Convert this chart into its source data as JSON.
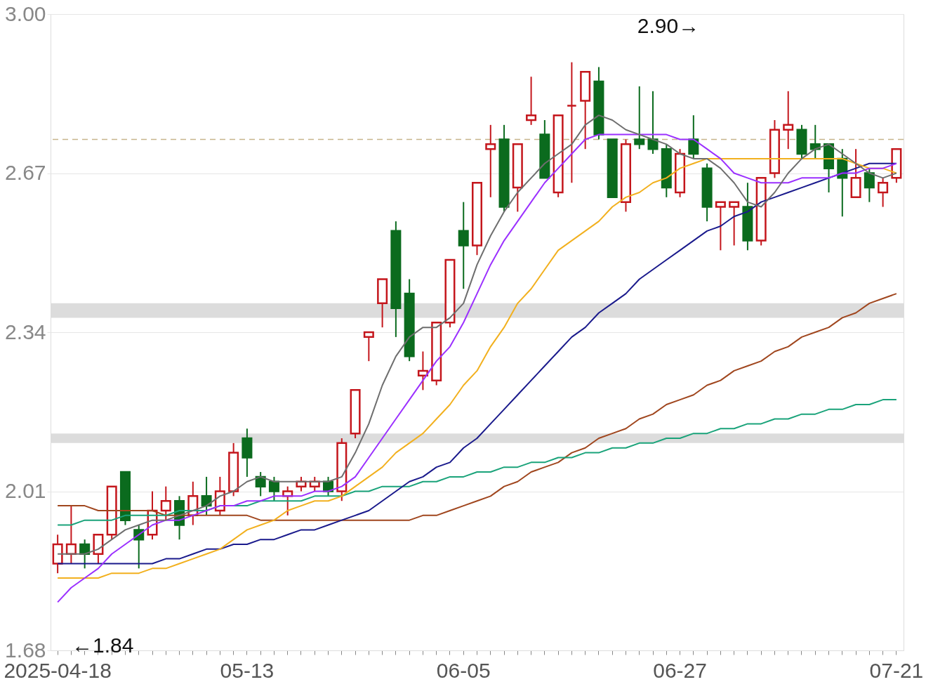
{
  "chart_data": {
    "type": "candlestick",
    "categories": [
      "2025-04-18",
      null,
      null,
      null,
      null,
      null,
      null,
      null,
      null,
      null,
      null,
      null,
      null,
      null,
      "05-13",
      null,
      null,
      null,
      null,
      null,
      null,
      null,
      null,
      null,
      null,
      null,
      null,
      null,
      null,
      null,
      "06-05",
      null,
      null,
      null,
      null,
      null,
      null,
      null,
      null,
      null,
      null,
      null,
      null,
      null,
      null,
      null,
      "06-27",
      null,
      null,
      null,
      null,
      null,
      null,
      null,
      null,
      null,
      null,
      null,
      null,
      null,
      null,
      null,
      "07-21"
    ],
    "ohlc": [
      [
        1.86,
        1.92,
        1.84,
        1.9
      ],
      [
        1.88,
        1.98,
        1.86,
        1.9
      ],
      [
        1.9,
        1.91,
        1.85,
        1.88
      ],
      [
        1.88,
        1.92,
        1.86,
        1.92
      ],
      [
        1.92,
        2.02,
        1.91,
        2.02
      ],
      [
        2.05,
        2.05,
        1.94,
        1.95
      ],
      [
        1.93,
        1.94,
        1.85,
        1.91
      ],
      [
        1.92,
        2.01,
        1.91,
        1.97
      ],
      [
        1.97,
        2.02,
        1.95,
        1.99
      ],
      [
        1.99,
        2.0,
        1.91,
        1.94
      ],
      [
        1.96,
        2.03,
        1.94,
        2.0
      ],
      [
        2.0,
        2.04,
        1.96,
        1.98
      ],
      [
        1.97,
        2.04,
        1.96,
        2.01
      ],
      [
        2.01,
        2.11,
        2.0,
        2.09
      ],
      [
        2.12,
        2.14,
        2.04,
        2.08
      ],
      [
        2.04,
        2.05,
        2.0,
        2.02
      ],
      [
        2.03,
        2.04,
        1.99,
        2.01
      ],
      [
        2.0,
        2.02,
        1.96,
        2.01
      ],
      [
        2.02,
        2.04,
        2.01,
        2.03
      ],
      [
        2.02,
        2.04,
        2.01,
        2.03
      ],
      [
        2.03,
        2.04,
        2.0,
        2.01
      ],
      [
        2.01,
        2.12,
        1.99,
        2.11
      ],
      [
        2.13,
        2.22,
        2.12,
        2.22
      ],
      [
        2.33,
        2.34,
        2.28,
        2.34
      ],
      [
        2.4,
        2.45,
        2.35,
        2.45
      ],
      [
        2.55,
        2.57,
        2.33,
        2.39
      ],
      [
        2.42,
        2.45,
        2.28,
        2.29
      ],
      [
        2.25,
        2.3,
        2.22,
        2.26
      ],
      [
        2.24,
        2.36,
        2.23,
        2.36
      ],
      [
        2.36,
        2.49,
        2.35,
        2.49
      ],
      [
        2.55,
        2.61,
        2.43,
        2.52
      ],
      [
        2.52,
        2.65,
        2.5,
        2.65
      ],
      [
        2.72,
        2.77,
        2.62,
        2.73
      ],
      [
        2.74,
        2.77,
        2.59,
        2.6
      ],
      [
        2.64,
        2.73,
        2.59,
        2.73
      ],
      [
        2.78,
        2.87,
        2.77,
        2.79
      ],
      [
        2.75,
        2.78,
        2.66,
        2.66
      ],
      [
        2.63,
        2.79,
        2.62,
        2.79
      ],
      [
        2.81,
        2.9,
        2.65,
        2.81
      ],
      [
        2.82,
        2.88,
        2.72,
        2.88
      ],
      [
        2.86,
        2.89,
        2.74,
        2.75
      ],
      [
        2.74,
        2.74,
        2.62,
        2.62
      ],
      [
        2.61,
        2.74,
        2.59,
        2.73
      ],
      [
        2.74,
        2.85,
        2.72,
        2.73
      ],
      [
        2.74,
        2.84,
        2.71,
        2.72
      ],
      [
        2.72,
        2.73,
        2.62,
        2.64
      ],
      [
        2.63,
        2.72,
        2.62,
        2.71
      ],
      [
        2.74,
        2.79,
        2.7,
        2.71
      ],
      [
        2.68,
        2.69,
        2.57,
        2.6
      ],
      [
        2.6,
        2.61,
        2.51,
        2.61
      ],
      [
        2.6,
        2.61,
        2.52,
        2.61
      ],
      [
        2.6,
        2.65,
        2.51,
        2.53
      ],
      [
        2.53,
        2.66,
        2.52,
        2.66
      ],
      [
        2.67,
        2.78,
        2.66,
        2.76
      ],
      [
        2.76,
        2.84,
        2.72,
        2.77
      ],
      [
        2.76,
        2.77,
        2.7,
        2.71
      ],
      [
        2.73,
        2.77,
        2.7,
        2.72
      ],
      [
        2.73,
        2.73,
        2.63,
        2.68
      ],
      [
        2.7,
        2.72,
        2.58,
        2.66
      ],
      [
        2.62,
        2.72,
        2.62,
        2.66
      ],
      [
        2.67,
        2.68,
        2.61,
        2.64
      ],
      [
        2.63,
        2.66,
        2.6,
        2.65
      ],
      [
        2.66,
        2.72,
        2.65,
        2.72
      ]
    ],
    "colors": [
      "#c4161c",
      "#c4161c",
      "#0b6b1e",
      "#c4161c",
      "#c4161c",
      "#0b6b1e",
      "#0b6b1e",
      "#c4161c",
      "#c4161c",
      "#0b6b1e",
      "#c4161c",
      "#0b6b1e",
      "#c4161c",
      "#c4161c",
      "#0b6b1e",
      "#0b6b1e",
      "#0b6b1e",
      "#c4161c",
      "#c4161c",
      "#c4161c",
      "#0b6b1e",
      "#c4161c",
      "#c4161c",
      "#c4161c",
      "#c4161c",
      "#0b6b1e",
      "#0b6b1e",
      "#c4161c",
      "#c4161c",
      "#c4161c",
      "#0b6b1e",
      "#c4161c",
      "#c4161c",
      "#0b6b1e",
      "#c4161c",
      "#c4161c",
      "#0b6b1e",
      "#c4161c",
      "#c4161c",
      "#c4161c",
      "#0b6b1e",
      "#0b6b1e",
      "#c4161c",
      "#0b6b1e",
      "#0b6b1e",
      "#0b6b1e",
      "#c4161c",
      "#0b6b1e",
      "#0b6b1e",
      "#c4161c",
      "#c4161c",
      "#0b6b1e",
      "#c4161c",
      "#c4161c",
      "#c4161c",
      "#0b6b1e",
      "#0b6b1e",
      "#0b6b1e",
      "#0b6b1e",
      "#c4161c",
      "#0b6b1e",
      "#c4161c",
      "#c4161c"
    ],
    "series": [
      {
        "type": "line",
        "color": "#a0461e",
        "values": [
          1.98,
          1.98,
          1.98,
          1.97,
          1.97,
          1.97,
          1.97,
          1.97,
          1.96,
          1.96,
          1.96,
          1.96,
          1.96,
          1.96,
          1.96,
          1.95,
          1.95,
          1.95,
          1.95,
          1.95,
          1.95,
          1.95,
          1.95,
          1.95,
          1.95,
          1.95,
          1.95,
          1.96,
          1.96,
          1.97,
          1.98,
          1.99,
          2.0,
          2.02,
          2.03,
          2.05,
          2.06,
          2.07,
          2.09,
          2.1,
          2.12,
          2.13,
          2.14,
          2.16,
          2.17,
          2.19,
          2.2,
          2.21,
          2.23,
          2.24,
          2.26,
          2.27,
          2.28,
          2.3,
          2.31,
          2.33,
          2.34,
          2.35,
          2.37,
          2.38,
          2.4,
          2.41,
          2.42
        ]
      },
      {
        "type": "line",
        "color": "#1aa37a",
        "values": [
          1.94,
          1.94,
          1.95,
          1.95,
          1.95,
          1.96,
          1.96,
          1.96,
          1.96,
          1.97,
          1.97,
          1.97,
          1.98,
          1.98,
          1.98,
          1.99,
          1.99,
          1.99,
          1.99,
          2.0,
          2.0,
          2.0,
          2.01,
          2.01,
          2.02,
          2.02,
          2.02,
          2.03,
          2.03,
          2.04,
          2.04,
          2.05,
          2.05,
          2.06,
          2.06,
          2.07,
          2.07,
          2.08,
          2.08,
          2.09,
          2.09,
          2.1,
          2.1,
          2.11,
          2.11,
          2.12,
          2.12,
          2.13,
          2.13,
          2.14,
          2.14,
          2.15,
          2.15,
          2.16,
          2.16,
          2.17,
          2.17,
          2.18,
          2.18,
          2.19,
          2.19,
          2.2,
          2.2
        ]
      },
      {
        "type": "line",
        "color": "#1a1a8c",
        "values": [
          1.86,
          1.86,
          1.86,
          1.86,
          1.86,
          1.86,
          1.86,
          1.86,
          1.87,
          1.87,
          1.88,
          1.89,
          1.89,
          1.9,
          1.9,
          1.91,
          1.91,
          1.92,
          1.93,
          1.93,
          1.94,
          1.95,
          1.96,
          1.97,
          1.99,
          2.01,
          2.03,
          2.04,
          2.06,
          2.07,
          2.1,
          2.12,
          2.15,
          2.18,
          2.21,
          2.24,
          2.27,
          2.3,
          2.33,
          2.35,
          2.38,
          2.4,
          2.42,
          2.45,
          2.47,
          2.49,
          2.51,
          2.53,
          2.55,
          2.56,
          2.58,
          2.59,
          2.61,
          2.62,
          2.63,
          2.64,
          2.65,
          2.66,
          2.67,
          2.68,
          2.69,
          2.69,
          2.69
        ]
      },
      {
        "type": "line",
        "color": "#f2b01e",
        "values": [
          1.83,
          1.83,
          1.83,
          1.83,
          1.84,
          1.84,
          1.84,
          1.85,
          1.85,
          1.86,
          1.87,
          1.88,
          1.89,
          1.91,
          1.93,
          1.94,
          1.95,
          1.97,
          1.98,
          1.99,
          1.99,
          2.0,
          2.02,
          2.04,
          2.06,
          2.09,
          2.11,
          2.13,
          2.16,
          2.19,
          2.23,
          2.26,
          2.31,
          2.35,
          2.4,
          2.43,
          2.47,
          2.51,
          2.53,
          2.55,
          2.57,
          2.6,
          2.62,
          2.63,
          2.65,
          2.66,
          2.68,
          2.69,
          2.7,
          2.7,
          2.7,
          2.7,
          2.7,
          2.7,
          2.7,
          2.7,
          2.7,
          2.7,
          2.7,
          2.69,
          2.68,
          2.68,
          2.67
        ]
      },
      {
        "type": "line",
        "color": "#9b30ff",
        "values": [
          1.78,
          1.81,
          1.83,
          1.85,
          1.88,
          1.9,
          1.92,
          1.94,
          1.95,
          1.95,
          1.96,
          1.97,
          1.98,
          1.98,
          1.99,
          1.99,
          2.0,
          2.0,
          2.0,
          2.01,
          2.01,
          2.02,
          2.04,
          2.08,
          2.12,
          2.16,
          2.2,
          2.24,
          2.28,
          2.31,
          2.36,
          2.42,
          2.48,
          2.53,
          2.57,
          2.61,
          2.65,
          2.68,
          2.71,
          2.74,
          2.75,
          2.75,
          2.75,
          2.75,
          2.75,
          2.75,
          2.74,
          2.74,
          2.72,
          2.7,
          2.67,
          2.66,
          2.65,
          2.65,
          2.65,
          2.66,
          2.66,
          2.66,
          2.67,
          2.67,
          2.68,
          2.68,
          2.69
        ]
      },
      {
        "type": "line",
        "color": "#6e6e6e",
        "values": [
          1.88,
          1.88,
          1.88,
          1.89,
          1.91,
          1.93,
          1.94,
          1.95,
          1.95,
          1.96,
          1.97,
          1.98,
          2.0,
          2.01,
          2.03,
          2.04,
          2.03,
          2.03,
          2.03,
          2.03,
          2.03,
          2.04,
          2.09,
          2.15,
          2.23,
          2.29,
          2.33,
          2.35,
          2.35,
          2.37,
          2.4,
          2.48,
          2.54,
          2.59,
          2.63,
          2.66,
          2.69,
          2.71,
          2.73,
          2.77,
          2.79,
          2.78,
          2.76,
          2.75,
          2.74,
          2.73,
          2.71,
          2.7,
          2.7,
          2.68,
          2.65,
          2.61,
          2.6,
          2.63,
          2.67,
          2.7,
          2.72,
          2.73,
          2.71,
          2.69,
          2.67,
          2.66,
          2.67
        ]
      }
    ],
    "ylim": [
      1.68,
      3.0
    ],
    "yticks": [
      1.68,
      2.01,
      2.34,
      2.67,
      {
        "value": 3,
        "label": "3.00"
      }
    ],
    "grid": "y",
    "ref_lines": [
      {
        "axis": "y",
        "value": 2.74,
        "color": "#c8b48c",
        "line_style": "dashed"
      }
    ],
    "bands": [
      {
        "axis": "y",
        "from": 2.37,
        "to": 2.4,
        "color": "#dcdcdc"
      },
      {
        "axis": "y",
        "from": 2.11,
        "to": 2.13,
        "color": "#dcdcdc"
      }
    ],
    "annotations": [
      "2.90→",
      "←1.84"
    ]
  }
}
